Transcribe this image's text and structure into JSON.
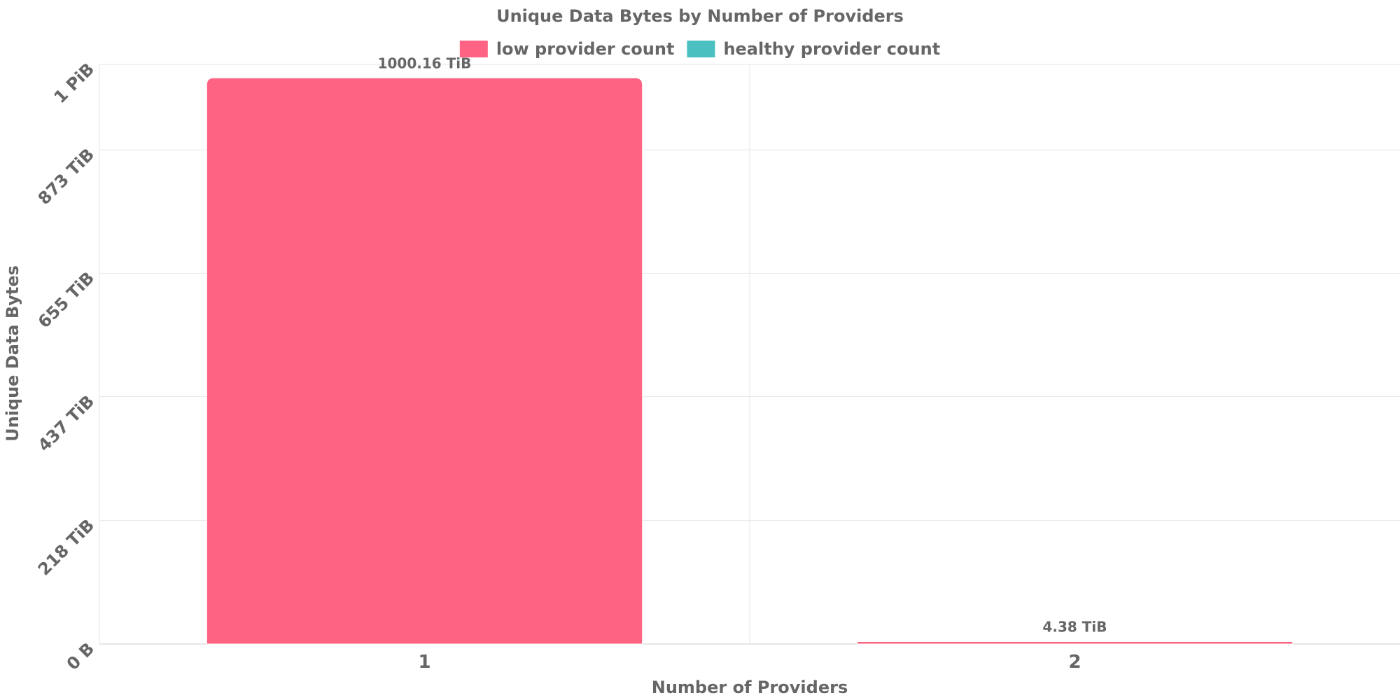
{
  "chart_data": {
    "type": "bar",
    "title": "Unique Data Bytes by Number of Providers",
    "xlabel": "Number of Providers",
    "ylabel": "Unique Data Bytes",
    "categories": [
      "1",
      "2"
    ],
    "ylim": [
      0,
      1024
    ],
    "unit": "TiB",
    "y_ticks": [
      {
        "value": 0,
        "label": "0 B"
      },
      {
        "value": 218,
        "label": "218 TiB"
      },
      {
        "value": 437,
        "label": "437 TiB"
      },
      {
        "value": 655,
        "label": "655 TiB"
      },
      {
        "value": 873,
        "label": "873 TiB"
      },
      {
        "value": 1024,
        "label": "1 PiB"
      }
    ],
    "bars": [
      {
        "category": "1",
        "value": 1000.16,
        "label": "1000.16 TiB",
        "series": "low provider count"
      },
      {
        "category": "2",
        "value": 4.38,
        "label": "4.38 TiB",
        "series": "low provider count"
      }
    ],
    "legend": {
      "placement": "top-center",
      "items": [
        {
          "name": "low provider count",
          "color": "#ff6384"
        },
        {
          "name": "healthy provider count",
          "color": "#4bc0c0"
        }
      ]
    },
    "grid": true
  }
}
